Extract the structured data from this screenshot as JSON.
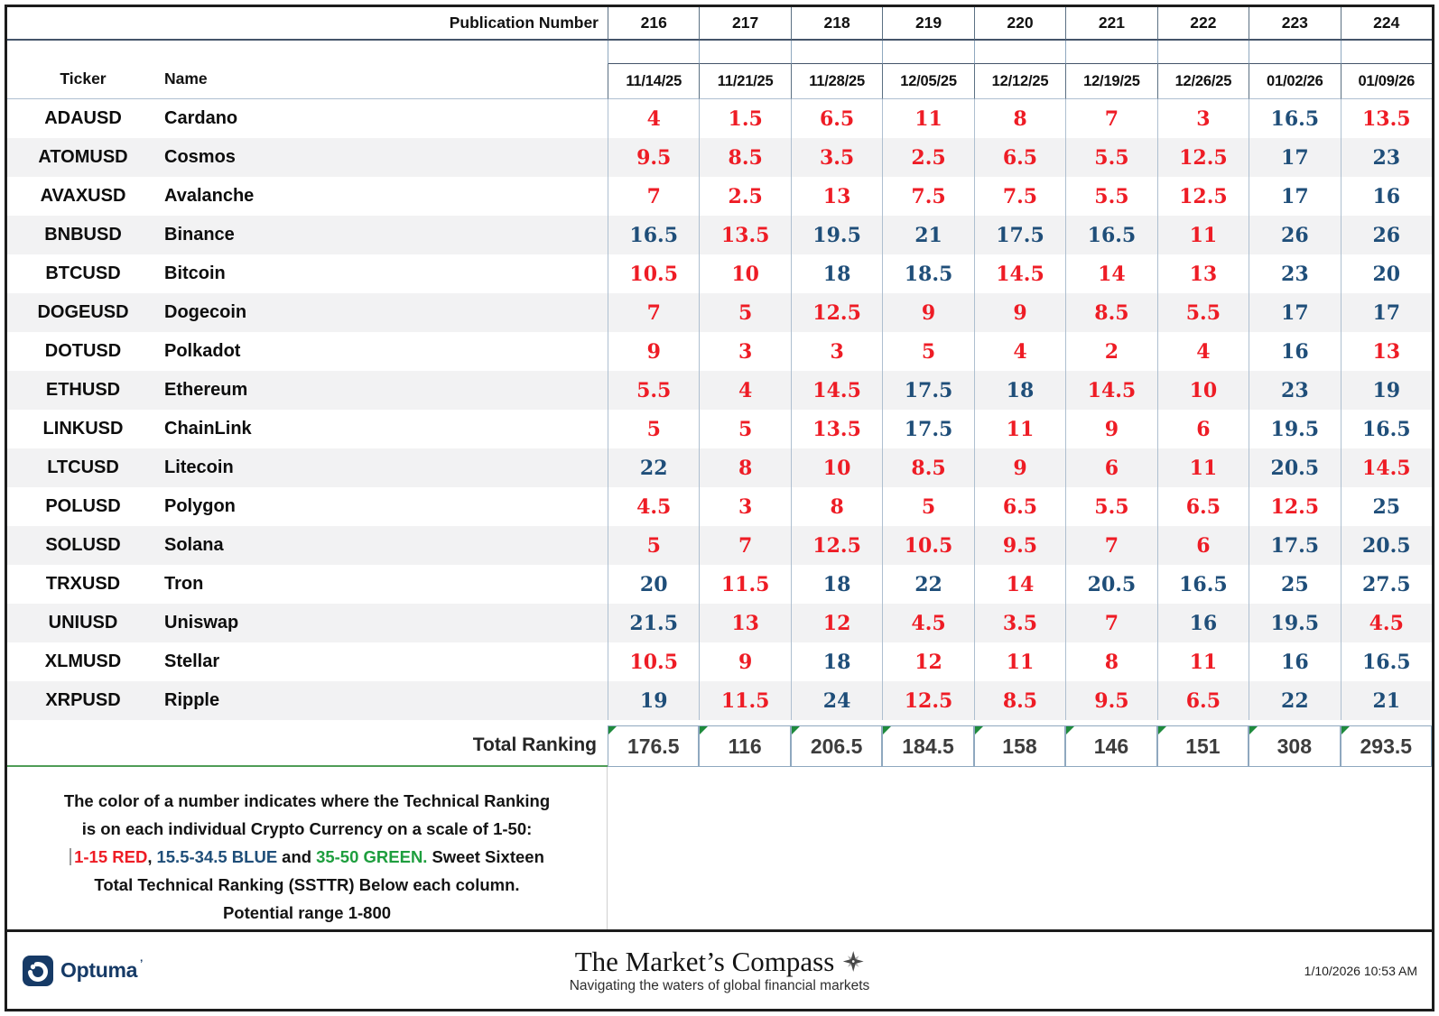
{
  "table": {
    "publication_label": "Publication Number",
    "ticker_label": "Ticker",
    "name_label": "Name",
    "total_label": "Total Ranking",
    "publications": [
      "216",
      "217",
      "218",
      "219",
      "220",
      "221",
      "222",
      "223",
      "224"
    ],
    "dates": [
      "11/14/25",
      "11/21/25",
      "11/28/25",
      "12/05/25",
      "12/12/25",
      "12/19/25",
      "12/26/25",
      "01/02/26",
      "01/09/26"
    ],
    "rows": [
      {
        "ticker": "ADAUSD",
        "name": "Cardano",
        "values": [
          4,
          1.5,
          6.5,
          11,
          8,
          7,
          3,
          16.5,
          13.5
        ]
      },
      {
        "ticker": "ATOMUSD",
        "name": "Cosmos",
        "values": [
          9.5,
          8.5,
          3.5,
          2.5,
          6.5,
          5.5,
          12.5,
          17,
          23
        ]
      },
      {
        "ticker": "AVAXUSD",
        "name": "Avalanche",
        "values": [
          7,
          2.5,
          13,
          7.5,
          7.5,
          5.5,
          12.5,
          17,
          16
        ]
      },
      {
        "ticker": "BNBUSD",
        "name": "Binance",
        "values": [
          16.5,
          13.5,
          19.5,
          21,
          17.5,
          16.5,
          11,
          26,
          26
        ]
      },
      {
        "ticker": "BTCUSD",
        "name": "Bitcoin",
        "values": [
          10.5,
          10,
          18,
          18.5,
          14.5,
          14,
          13,
          23,
          20
        ]
      },
      {
        "ticker": "DOGEUSD",
        "name": "Dogecoin",
        "values": [
          7,
          5,
          12.5,
          9,
          9,
          8.5,
          5.5,
          17,
          17
        ]
      },
      {
        "ticker": "DOTUSD",
        "name": "Polkadot",
        "values": [
          9,
          3,
          3,
          5,
          4,
          2,
          4,
          16,
          13
        ]
      },
      {
        "ticker": "ETHUSD",
        "name": "Ethereum",
        "values": [
          5.5,
          4,
          14.5,
          17.5,
          18,
          14.5,
          10,
          23,
          19
        ]
      },
      {
        "ticker": "LINKUSD",
        "name": "ChainLink",
        "values": [
          5,
          5,
          13.5,
          17.5,
          11,
          9,
          6,
          19.5,
          16.5
        ]
      },
      {
        "ticker": "LTCUSD",
        "name": "Litecoin",
        "values": [
          22,
          8,
          10,
          8.5,
          9,
          6,
          11,
          20.5,
          14.5
        ]
      },
      {
        "ticker": "POLUSD",
        "name": "Polygon",
        "values": [
          4.5,
          3,
          8,
          5,
          6.5,
          5.5,
          6.5,
          12.5,
          25
        ]
      },
      {
        "ticker": "SOLUSD",
        "name": "Solana",
        "values": [
          5,
          7,
          12.5,
          10.5,
          9.5,
          7,
          6,
          17.5,
          20.5
        ]
      },
      {
        "ticker": "TRXUSD",
        "name": "Tron",
        "values": [
          20,
          11.5,
          18,
          22,
          14,
          20.5,
          16.5,
          25,
          27.5
        ]
      },
      {
        "ticker": "UNIUSD",
        "name": "Uniswap",
        "values": [
          21.5,
          13,
          12,
          4.5,
          3.5,
          7,
          16,
          19.5,
          4.5
        ]
      },
      {
        "ticker": "XLMUSD",
        "name": "Stellar",
        "values": [
          10.5,
          9,
          18,
          12,
          11,
          8,
          11,
          16,
          16.5
        ]
      },
      {
        "ticker": "XRPUSD",
        "name": "Ripple",
        "values": [
          19,
          11.5,
          24,
          12.5,
          8.5,
          9.5,
          6.5,
          22,
          21
        ]
      }
    ],
    "totals": [
      176.5,
      116,
      206.5,
      184.5,
      158,
      146,
      151,
      308,
      293.5
    ]
  },
  "legend": {
    "line1": "The color of a number indicates where the Technical Ranking",
    "line2": "is on each individual Crypto Currency on a scale of 1-50:",
    "red_range": "1-15 RED",
    "comma": ",",
    "blue_range": "15.5-34.5 BLUE",
    "and_word": "and",
    "green_range": "35-50 GREEN.",
    "line3_tail": "Sweet Sixteen",
    "line4": "Total Technical Ranking (SSTTR) Below each column.",
    "line5": "Potential range 1-800"
  },
  "color_rules": {
    "red_max": 15,
    "blue_max": 34.5,
    "green_min": 35,
    "red_hex": "#ee1c25",
    "blue_hex": "#1f4e79",
    "green_hex": "#1e9e3e"
  },
  "footer": {
    "brand": "Optuma",
    "title": "The Market’s Compass",
    "subtitle": "Navigating the waters of global financial markets",
    "timestamp": "1/10/2026 10:53 AM"
  }
}
